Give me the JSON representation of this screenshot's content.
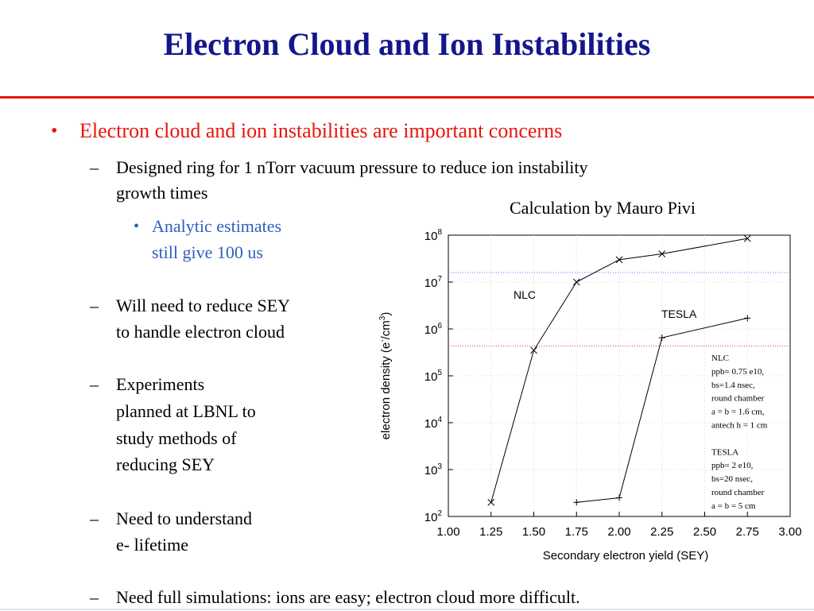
{
  "slide": {
    "title": "Electron Cloud and Ion Instabilities",
    "bullet_l1": "Electron cloud and ion instabilities are important concerns",
    "sub1_line1": "Designed ring for 1 nTorr vacuum pressure to reduce ion instability",
    "sub1_line2": "growth times",
    "sub1_child_line1": "Analytic estimates",
    "sub1_child_line2": "still give 100 us",
    "sub2_line1": "Will need to reduce SEY",
    "sub2_line2": "to handle electron cloud",
    "sub3_line1": "Experiments",
    "sub3_line2": "planned at LBNL to",
    "sub3_line3": "study methods of",
    "sub3_line4": "reducing SEY",
    "sub4_line1": "Need to understand",
    "sub4_line2": "e- lifetime",
    "sub5": "Need full simulations: ions are easy; electron cloud more difficult.",
    "bullet_mark": "•",
    "dash_mark": "–",
    "caption": "Calculation by Mauro Pivi"
  },
  "chart_data": {
    "type": "line",
    "xlabel": "Secondary electron yield (SEY)",
    "ylabel_prefix": "electron density (e",
    "ylabel_sup1": "-",
    "ylabel_mid": "/cm",
    "ylabel_sup2": "3",
    "ylabel_suffix": ")",
    "xlim": [
      1.0,
      3.0
    ],
    "y_scale": "log",
    "ylim": [
      100,
      100000000
    ],
    "x_ticks": [
      "1.00",
      "1.25",
      "1.50",
      "1.75",
      "2.00",
      "2.25",
      "2.50",
      "2.75",
      "3.00"
    ],
    "y_ticks": [
      {
        "base": "10",
        "exp": "2"
      },
      {
        "base": "10",
        "exp": "3"
      },
      {
        "base": "10",
        "exp": "4"
      },
      {
        "base": "10",
        "exp": "5"
      },
      {
        "base": "10",
        "exp": "6"
      },
      {
        "base": "10",
        "exp": "7"
      },
      {
        "base": "10",
        "exp": "8"
      }
    ],
    "grid": true,
    "series": [
      {
        "name": "NLC",
        "marker": "x",
        "x": [
          1.25,
          1.5,
          1.75,
          2.0,
          2.25,
          2.75
        ],
        "y": [
          200,
          350000,
          10000000,
          30000000,
          40000000,
          85000000
        ]
      },
      {
        "name": "TESLA",
        "marker": "+",
        "x": [
          1.75,
          2.0,
          2.25,
          2.75
        ],
        "y": [
          200,
          250,
          650000,
          1700000
        ]
      }
    ],
    "reference_lines": [
      {
        "color": "#6a6aff",
        "y": 16000000,
        "style": "dotted"
      },
      {
        "color": "#e83030",
        "y": 430000,
        "style": "dotted"
      }
    ],
    "annotation_lines": [
      "NLC",
      "ppb= 0.75 e10,",
      "bs=1.4 nsec,",
      "round chamber",
      "a = b = 1.6 cm,",
      "antech h = 1 cm",
      "",
      "TESLA",
      "ppb= 2 e10,",
      "bs=20 nsec,",
      "round chamber",
      "a = b = 5 cm"
    ]
  }
}
